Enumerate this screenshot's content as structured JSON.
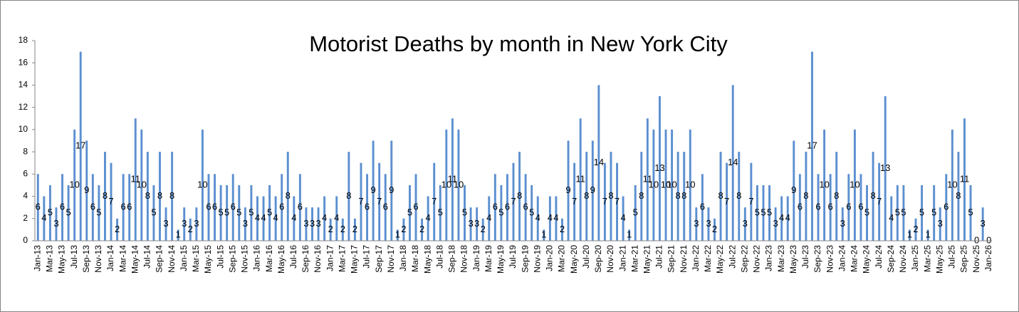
{
  "chart_data": {
    "type": "bar",
    "title": "Motorist Deaths  by month in New York City",
    "categories": [
      "Jan-13",
      null,
      "Mar-13",
      null,
      "May-13",
      null,
      "Jul-13",
      null,
      "Sep-13",
      null,
      "Nov-13",
      null,
      "Jan-14",
      null,
      "Mar-14",
      null,
      "May-14",
      null,
      "Jul-14",
      null,
      "Sep-14",
      null,
      "Nov-14",
      null,
      "Jan-15",
      null,
      "Mar-15",
      null,
      "May-15",
      null,
      "Jul-15",
      null,
      "Sep-15",
      null,
      "Nov-15",
      null,
      "Jan-16",
      null,
      "Mar-16",
      null,
      "May-16",
      null,
      "Jul-16",
      null,
      "Sep-16",
      null,
      "Nov-16",
      null,
      "Jan-17",
      null,
      "Mar-17",
      null,
      "May-17",
      null,
      "Jul-17",
      null,
      "Sep-17",
      null,
      "Nov-17",
      null,
      "Jan-18",
      null,
      "Mar-18",
      null,
      "May-18",
      null,
      "Jul-18",
      null,
      "Sep-18",
      null,
      "Nov-18",
      null,
      "Jan-19",
      null,
      "Mar-19",
      null,
      "May-19",
      null,
      "Jul-19",
      null,
      "Sep-19",
      null,
      "Nov-19",
      null,
      "Jan-20",
      null,
      "Mar-20",
      null,
      "May-20",
      null,
      "Jul-20",
      null,
      "Sep-20",
      null,
      "Nov-20",
      null,
      "Jan-21",
      null,
      "Mar-21",
      null,
      "May-21",
      null,
      "Jul-21",
      null,
      "Sep-21",
      null,
      "Nov-21",
      null,
      "Jan-22",
      null,
      "Mar-22",
      null,
      "May-22",
      null,
      "Jul-22",
      null,
      "Sep-22",
      null,
      "Nov-22",
      null,
      "Jan-23",
      null,
      "Mar-23",
      null,
      "May-23",
      null,
      "Jul-23",
      null,
      "Sep-23",
      null,
      "Nov-23",
      null,
      "Jan-24",
      null,
      "Mar-24",
      null,
      "May-24",
      null,
      "Jul-24",
      null,
      "Sep-24",
      null,
      "Nov-24",
      null,
      "Jan-25",
      null,
      "Mar-25",
      null,
      "May-25",
      null,
      "Jul-25",
      null,
      "Sep-25",
      null,
      "Nov-25",
      null,
      "Jan-26"
    ],
    "values": [
      6,
      4,
      5,
      3,
      6,
      5,
      10,
      17,
      9,
      6,
      5,
      8,
      7,
      2,
      6,
      6,
      11,
      10,
      8,
      5,
      8,
      3,
      8,
      1,
      3,
      2,
      3,
      10,
      6,
      6,
      5,
      5,
      6,
      5,
      3,
      5,
      4,
      4,
      5,
      4,
      6,
      8,
      4,
      6,
      3,
      3,
      3,
      4,
      2,
      4,
      2,
      8,
      2,
      7,
      6,
      9,
      7,
      6,
      9,
      1,
      2,
      5,
      6,
      2,
      4,
      7,
      5,
      10,
      11,
      10,
      5,
      3,
      3,
      2,
      4,
      6,
      5,
      6,
      7,
      8,
      6,
      5,
      4,
      1,
      4,
      4,
      2,
      9,
      7,
      11,
      8,
      9,
      14,
      7,
      8,
      7,
      4,
      1,
      5,
      8,
      11,
      10,
      13,
      10,
      10,
      8,
      8,
      10,
      3,
      6,
      3,
      2,
      8,
      7,
      14,
      8,
      3,
      7,
      5,
      5,
      5,
      3,
      4,
      4,
      9,
      6,
      8,
      17,
      6,
      10,
      6,
      8,
      3,
      6,
      10,
      6,
      5,
      8,
      7,
      13,
      4,
      5,
      5,
      1,
      2,
      5,
      1,
      5,
      3,
      6,
      10,
      8,
      11,
      5,
      0,
      3,
      0
    ],
    "color": "#5b8fd0",
    "ylim": [
      0,
      18
    ],
    "yticks": [
      0,
      2,
      4,
      6,
      8,
      10,
      12,
      14,
      16,
      18
    ],
    "grid": false
  }
}
